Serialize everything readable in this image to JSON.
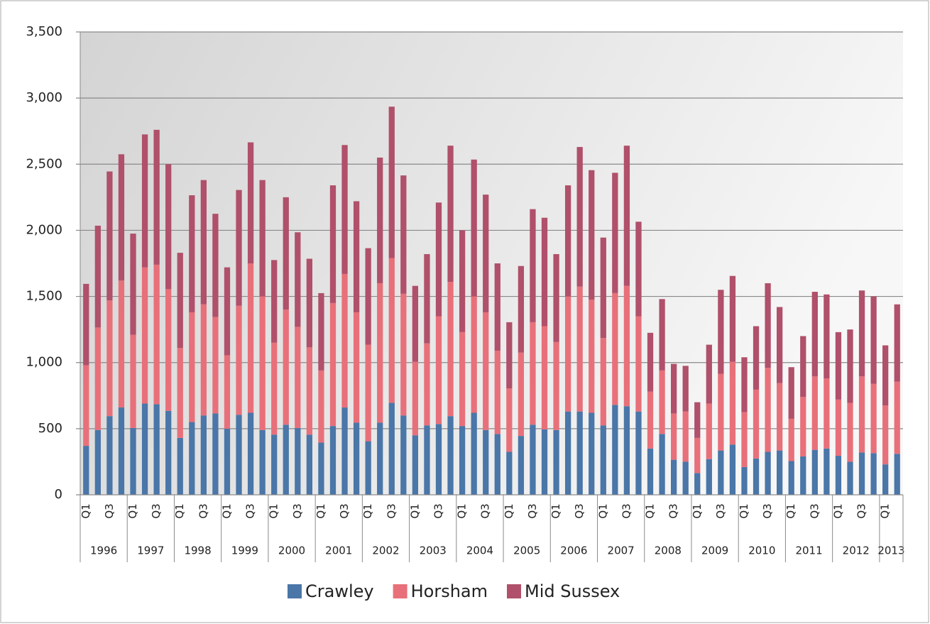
{
  "chart_data": {
    "type": "stacked_bar",
    "categories": [
      "Q1",
      null,
      "Q3",
      null,
      "Q1",
      null,
      "Q3",
      null,
      "Q1",
      null,
      "Q3",
      null,
      "Q1",
      null,
      "Q3",
      null,
      "Q1",
      null,
      "Q3",
      null,
      "Q1",
      null,
      "Q3",
      null,
      "Q1",
      null,
      "Q3",
      null,
      "Q1",
      null,
      "Q3",
      null,
      "Q1",
      null,
      "Q3",
      null,
      "Q1",
      null,
      "Q3",
      null,
      "Q1",
      null,
      "Q3",
      null,
      "Q1",
      null,
      "Q3",
      null,
      "Q1",
      null,
      "Q3",
      null,
      "Q1",
      null,
      "Q3",
      null,
      "Q1",
      null,
      "Q3",
      null,
      "Q1",
      null,
      "Q3",
      null,
      "Q1",
      null,
      "Q3",
      null,
      "Q1",
      null
    ],
    "years": [
      "1996",
      "1997",
      "1998",
      "1999",
      "2000",
      "2001",
      "2002",
      "2003",
      "2004",
      "2005",
      "2006",
      "2007",
      "2008",
      "2009",
      "2010",
      "2011",
      "2012",
      "2013"
    ],
    "series": [
      {
        "name": "Crawley",
        "color": "#4a76a8",
        "values": [
          370,
          490,
          595,
          660,
          505,
          690,
          685,
          635,
          430,
          550,
          600,
          615,
          500,
          605,
          620,
          490,
          455,
          530,
          505,
          455,
          395,
          520,
          660,
          545,
          405,
          545,
          695,
          600,
          450,
          525,
          535,
          595,
          520,
          620,
          490,
          460,
          325,
          445,
          530,
          495,
          490,
          630,
          630,
          620,
          525,
          680,
          670,
          630,
          350,
          460,
          265,
          250,
          165,
          270,
          335,
          380,
          210,
          275,
          325,
          335,
          255,
          290,
          340,
          350,
          295,
          250,
          320,
          315,
          230,
          310
        ]
      },
      {
        "name": "Horsham",
        "color": "#e8707a",
        "values": [
          610,
          775,
          875,
          960,
          705,
          1030,
          1055,
          920,
          680,
          830,
          840,
          730,
          555,
          825,
          1130,
          1010,
          695,
          870,
          765,
          660,
          545,
          930,
          1010,
          835,
          730,
          1055,
          1095,
          920,
          555,
          620,
          815,
          1015,
          710,
          880,
          890,
          630,
          480,
          630,
          775,
          780,
          665,
          870,
          945,
          855,
          660,
          845,
          910,
          720,
          430,
          480,
          350,
          380,
          265,
          420,
          580,
          625,
          415,
          520,
          635,
          510,
          320,
          450,
          555,
          530,
          425,
          445,
          575,
          525,
          445,
          545
        ]
      },
      {
        "name": "Mid Sussex",
        "color": "#b0506a",
        "values": [
          615,
          770,
          975,
          955,
          765,
          1005,
          1020,
          945,
          720,
          885,
          940,
          780,
          665,
          875,
          915,
          880,
          625,
          850,
          715,
          670,
          585,
          890,
          975,
          840,
          730,
          950,
          1145,
          895,
          575,
          675,
          860,
          1030,
          770,
          1035,
          890,
          660,
          500,
          655,
          855,
          820,
          665,
          840,
          1055,
          980,
          760,
          910,
          1060,
          715,
          445,
          540,
          375,
          345,
          270,
          445,
          635,
          650,
          415,
          480,
          640,
          575,
          390,
          460,
          640,
          635,
          510,
          555,
          650,
          660,
          455,
          585
        ]
      }
    ],
    "ylim": [
      0,
      3500
    ],
    "yticks": [
      0,
      500,
      {
        "value": 1000,
        "label": "1,000"
      },
      {
        "value": 1500,
        "label": "1,500"
      },
      {
        "value": 2000,
        "label": "2,000"
      },
      {
        "value": 2500,
        "label": "2,500"
      },
      {
        "value": 3000,
        "label": "3,000"
      },
      {
        "value": 3500,
        "label": "3,500"
      }
    ],
    "grid": true,
    "legend": "bottom"
  }
}
